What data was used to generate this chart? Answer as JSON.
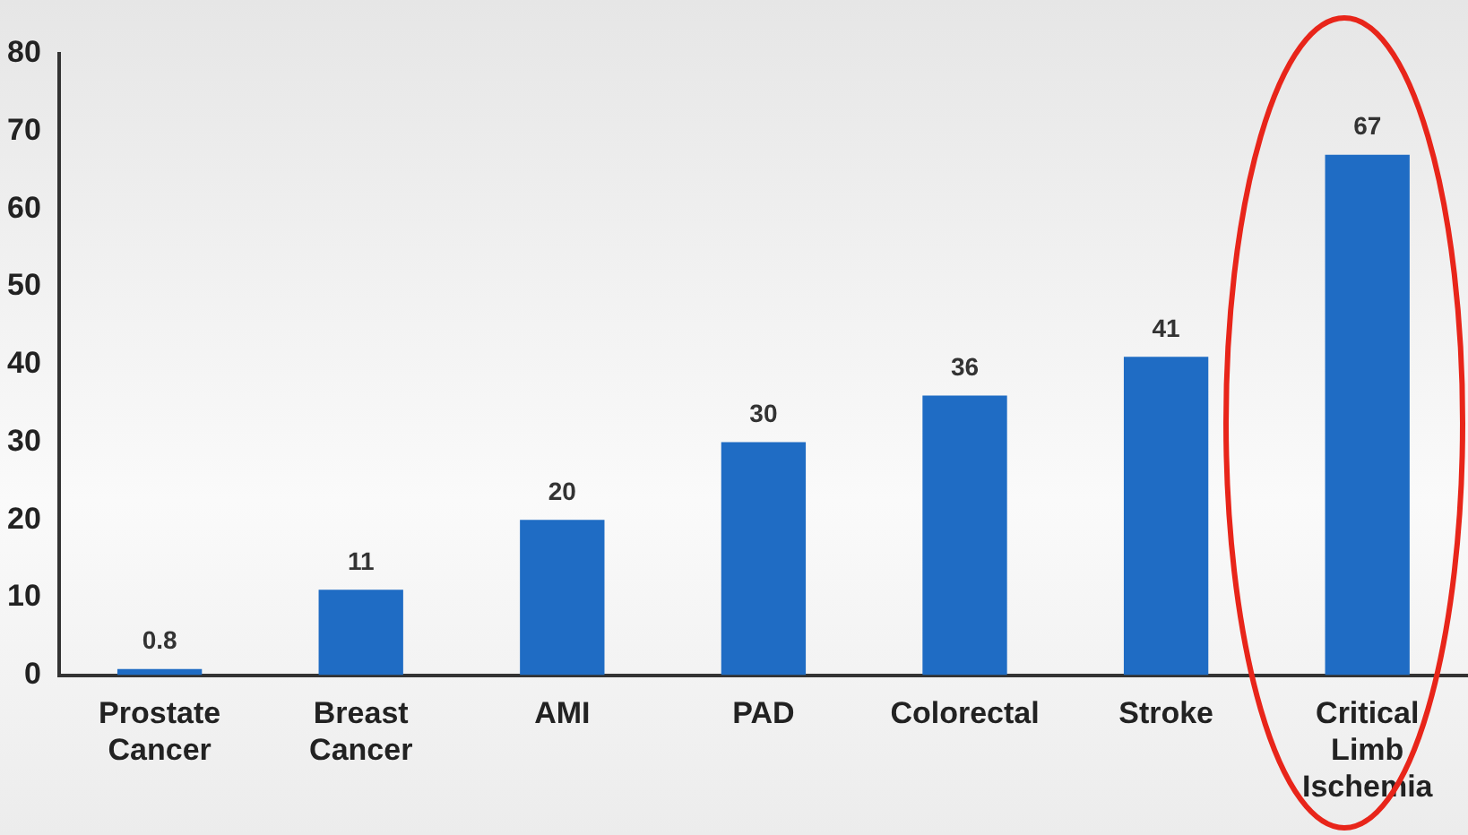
{
  "chart_data": {
    "type": "bar",
    "categories": [
      "Prostate Cancer",
      "Breast Cancer",
      "AMI",
      "PAD",
      "Colorectal",
      "Stroke",
      "Critical Limb Ischemia"
    ],
    "values": [
      0.8,
      11,
      20,
      30,
      36,
      41,
      67
    ],
    "color": "#1f6cc4",
    "ylim": [
      0,
      80
    ],
    "yticks": [
      0,
      10,
      20,
      30,
      40,
      50,
      60,
      70,
      80
    ],
    "grid": false,
    "legend": false,
    "data_labels": true
  }
}
